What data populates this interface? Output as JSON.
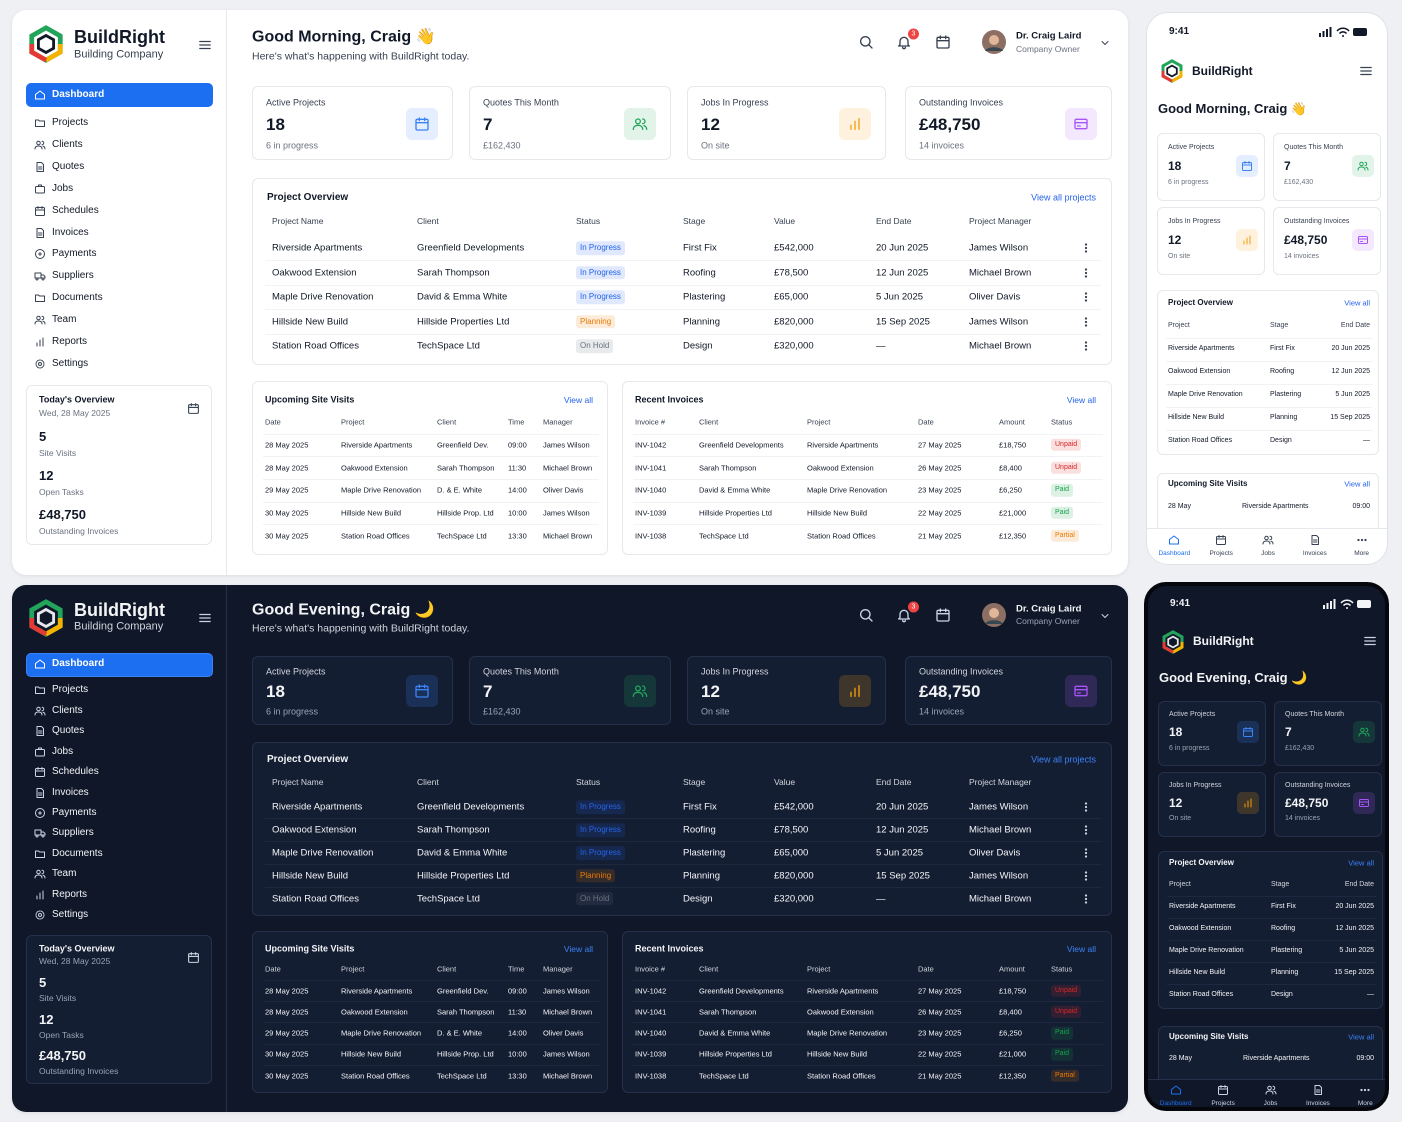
{
  "brand": {
    "name": "BuildRight",
    "tagline": "Building Company"
  },
  "themes": [
    {
      "greeting": "Good Morning, Craig 👋"
    },
    {
      "greeting": "Good Evening, Craig 🌙"
    }
  ],
  "subtitle": "Here's what's happening with BuildRight today.",
  "user": {
    "name": "Dr. Craig Laird",
    "role": "Company Owner"
  },
  "notifications": 3,
  "nav": [
    "Dashboard",
    "Projects",
    "Clients",
    "Quotes",
    "Jobs",
    "Schedules",
    "Invoices",
    "Payments",
    "Suppliers",
    "Documents",
    "Team",
    "Reports",
    "Settings"
  ],
  "today": {
    "title": "Today's Overview",
    "date": "Wed, 28 May 2025",
    "items": [
      {
        "value": "5",
        "label": "Site Visits"
      },
      {
        "value": "12",
        "label": "Open Tasks"
      },
      {
        "value": "£48,750",
        "label": "Outstanding Invoices"
      }
    ]
  },
  "stats": [
    {
      "label": "Active Projects",
      "value": "18",
      "sub": "6 in progress",
      "color": "#3b82f6"
    },
    {
      "label": "Quotes This Month",
      "value": "7",
      "sub": "£162,430",
      "color": "#22a55a"
    },
    {
      "label": "Jobs In Progress",
      "value": "12",
      "sub": "On site",
      "color": "#f59e0b"
    },
    {
      "label": "Outstanding Invoices",
      "value": "£48,750",
      "sub": "14 invoices",
      "color": "#a855f7"
    }
  ],
  "projects": {
    "title": "Project Overview",
    "link": "View all projects",
    "columns": [
      "Project Name",
      "Client",
      "Status",
      "Stage",
      "Value",
      "End Date",
      "Project Manager"
    ],
    "rows": [
      [
        "Riverside Apartments",
        "Greenfield Developments",
        "In Progress",
        "First Fix",
        "£542,000",
        "20 Jun 2025",
        "James Wilson"
      ],
      [
        "Oakwood Extension",
        "Sarah Thompson",
        "In Progress",
        "Roofing",
        "£78,500",
        "12 Jun 2025",
        "Michael Brown"
      ],
      [
        "Maple Drive Renovation",
        "David & Emma White",
        "In Progress",
        "Plastering",
        "£65,000",
        "5 Jun 2025",
        "Oliver Davis"
      ],
      [
        "Hillside New Build",
        "Hillside Properties Ltd",
        "Planning",
        "Planning",
        "£820,000",
        "15 Sep 2025",
        "James Wilson"
      ],
      [
        "Station Road Offices",
        "TechSpace Ltd",
        "On Hold",
        "Design",
        "£320,000",
        "—",
        "Michael Brown"
      ]
    ],
    "badge_colors": [
      "#2563eb",
      "#2563eb",
      "#2563eb",
      "#ea7a00",
      "#6b7280"
    ]
  },
  "visits": {
    "title": "Upcoming Site Visits",
    "link": "View all",
    "columns": [
      "Date",
      "Project",
      "Client",
      "Time",
      "Manager"
    ],
    "rows": [
      [
        "28 May 2025",
        "Riverside Apartments",
        "Greenfield Dev.",
        "09:00",
        "James Wilson"
      ],
      [
        "28 May 2025",
        "Oakwood Extension",
        "Sarah Thompson",
        "11:30",
        "Michael Brown"
      ],
      [
        "29 May 2025",
        "Maple Drive Renovation",
        "D. & E. White",
        "14:00",
        "Oliver Davis"
      ],
      [
        "30 May 2025",
        "Hillside New Build",
        "Hillside Prop. Ltd",
        "10:00",
        "James Wilson"
      ],
      [
        "30 May 2025",
        "Station Road Offices",
        "TechSpace Ltd",
        "13:30",
        "Michael Brown"
      ]
    ]
  },
  "invoices": {
    "title": "Recent Invoices",
    "link": "View all",
    "columns": [
      "Invoice #",
      "Client",
      "Project",
      "Date",
      "Amount",
      "Status"
    ],
    "rows": [
      [
        "INV-1042",
        "Greenfield Developments",
        "Riverside Apartments",
        "27 May 2025",
        "£18,750",
        "Unpaid"
      ],
      [
        "INV-1041",
        "Sarah Thompson",
        "Oakwood Extension",
        "26 May 2025",
        "£8,400",
        "Unpaid"
      ],
      [
        "INV-1040",
        "David & Emma White",
        "Maple Drive Renovation",
        "23 May 2025",
        "£6,250",
        "Paid"
      ],
      [
        "INV-1039",
        "Hillside Properties Ltd",
        "Hillside New Build",
        "22 May 2025",
        "£21,000",
        "Paid"
      ],
      [
        "INV-1038",
        "TechSpace Ltd",
        "Station Road Offices",
        "21 May 2025",
        "£12,350",
        "Partial"
      ]
    ],
    "badge_colors": [
      "#dc2626",
      "#dc2626",
      "#16a34a",
      "#16a34a",
      "#ea7a00"
    ]
  },
  "mobile": {
    "time": "9:41",
    "link": "View all",
    "project_columns": [
      "Project",
      "Stage",
      "End Date"
    ],
    "visit_date": "28 May",
    "tabs": [
      "Dashboard",
      "Projects",
      "Jobs",
      "Invoices",
      "More"
    ]
  }
}
